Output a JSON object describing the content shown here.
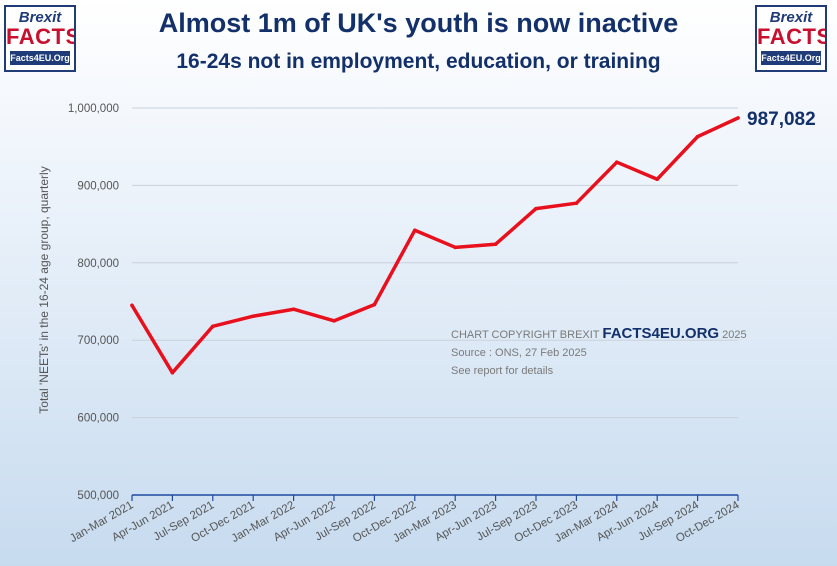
{
  "header": {
    "title": "Almost 1m of UK's youth is now inactive",
    "subtitle": "16-24s not in employment, education, or training"
  },
  "logos": {
    "line1": "Brexit",
    "line2": "FACTS",
    "line3": "Facts4EU.Org"
  },
  "copyright": {
    "prefix": "CHART COPYRIGHT BREXIT",
    "brand": "FACTS4EU.ORG",
    "year": "2025",
    "source": "Source : ONS, 27 Feb 2025",
    "note": "See report for details"
  },
  "colors": {
    "line": "#e8101c",
    "axis": "#1f4aa0",
    "grid": "#c9d2dc",
    "tick_text": "#555555",
    "label_text": "#13306a"
  },
  "chart_data": {
    "type": "line",
    "title": "Almost 1m of UK's youth is now inactive",
    "subtitle": "16-24s not in employment, education, or training",
    "ylabel": "Total 'NEETs' in the 16-24 age group, quarterly",
    "xlabel": "",
    "ylim": [
      500000,
      1000000
    ],
    "yticks": [
      500000,
      600000,
      700000,
      800000,
      900000,
      1000000
    ],
    "ytick_labels": [
      "500,000",
      "600,000",
      "700,000",
      "800,000",
      "900,000",
      "1,000,000"
    ],
    "grid": true,
    "categories": [
      "Jan-Mar 2021",
      "Apr-Jun 2021",
      "Jul-Sep 2021",
      "Oct-Dec 2021",
      "Jan-Mar 2022",
      "Apr-Jun 2022",
      "Jul-Sep 2022",
      "Oct-Dec 2022",
      "Jan-Mar 2023",
      "Apr-Jun 2023",
      "Jul-Sep 2023",
      "Oct-Dec 2023",
      "Jan-Mar 2024",
      "Apr-Jun 2024",
      "Jul-Sep 2024",
      "Oct-Dec 2024"
    ],
    "series": [
      {
        "values": [
          745000,
          658000,
          718000,
          731000,
          740000,
          725000,
          746000,
          842000,
          820000,
          824000,
          870000,
          877000,
          930000,
          908000,
          963000,
          987082
        ]
      }
    ],
    "annotations": [
      {
        "label": "987,082",
        "category": "Oct-Dec 2024",
        "value": 987082
      }
    ]
  }
}
